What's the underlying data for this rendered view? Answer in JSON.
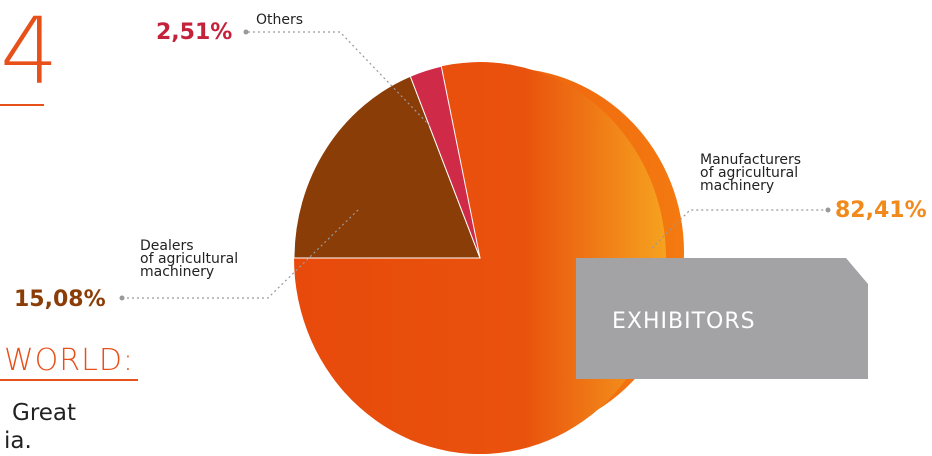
{
  "page": {
    "big_fragment": "4",
    "world_fragment": "WORLD:",
    "text_line1": "Great",
    "text_line2": "ia."
  },
  "chart_data": {
    "type": "pie",
    "title": "EXHIBITORS",
    "slices": [
      {
        "label_lines": [
          "Manufacturers",
          "of agricultural",
          "machinery"
        ],
        "value": 82.41,
        "display": "82,41%",
        "color": "#e84a0c",
        "pct_color": "#f18a1c"
      },
      {
        "label_lines": [
          "Dealers",
          "of agricultural",
          "machinery"
        ],
        "value": 15.08,
        "display": "15,08%",
        "color": "#8b3d07",
        "pct_color": "#8b3d07"
      },
      {
        "label_lines": [
          "Others"
        ],
        "value": 2.51,
        "display": "2,51%",
        "color": "#cf2a48",
        "pct_color": "#c4213a"
      }
    ]
  }
}
